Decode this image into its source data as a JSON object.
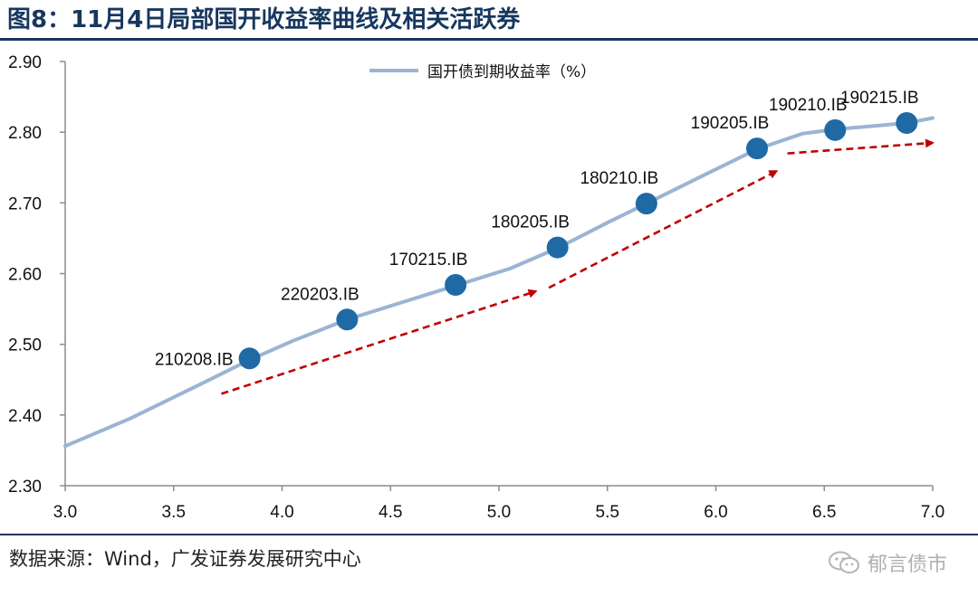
{
  "figure": {
    "title": "图8：11月4日局部国开收益率曲线及相关活跃券",
    "source": "数据来源：Wind，广发证券发展研究中心",
    "watermark": "郁言债市"
  },
  "chart_data": {
    "type": "line",
    "title": "",
    "xlabel": "",
    "ylabel": "",
    "xlim": [
      3.0,
      7.0
    ],
    "ylim": [
      2.3,
      2.9
    ],
    "xticks": [
      "3.0",
      "3.5",
      "4.0",
      "4.5",
      "5.0",
      "5.5",
      "6.0",
      "6.5",
      "7.0"
    ],
    "yticks": [
      "2.30",
      "2.40",
      "2.50",
      "2.60",
      "2.70",
      "2.80",
      "2.90"
    ],
    "grid": false,
    "legend": "top-center",
    "series": [
      {
        "name": "国开债到期收益率（%）",
        "color": "#9bb4d3",
        "x": [
          3.0,
          3.3,
          3.6,
          3.85,
          4.05,
          4.3,
          4.55,
          4.8,
          5.05,
          5.27,
          5.5,
          5.68,
          5.95,
          6.19,
          6.4,
          6.55,
          6.7,
          6.88,
          7.0
        ],
        "y": [
          2.356,
          2.395,
          2.44,
          2.478,
          2.505,
          2.535,
          2.559,
          2.583,
          2.607,
          2.636,
          2.672,
          2.699,
          2.74,
          2.776,
          2.798,
          2.804,
          2.808,
          2.813,
          2.82
        ]
      }
    ],
    "highlight_points": {
      "color": "#1f6aa5",
      "points": [
        {
          "label": "210208.IB",
          "x": 3.85,
          "y": 2.48
        },
        {
          "label": "220203.IB",
          "x": 4.3,
          "y": 2.535
        },
        {
          "label": "170215.IB",
          "x": 4.8,
          "y": 2.584
        },
        {
          "label": "180205.IB",
          "x": 5.27,
          "y": 2.637
        },
        {
          "label": "180210.IB",
          "x": 5.68,
          "y": 2.699
        },
        {
          "label": "190205.IB",
          "x": 6.19,
          "y": 2.777
        },
        {
          "label": "190210.IB",
          "x": 6.55,
          "y": 2.803
        },
        {
          "label": "190215.IB",
          "x": 6.88,
          "y": 2.813
        }
      ]
    },
    "trend_arrows": {
      "color": "#c00000",
      "arrows": [
        {
          "from": [
            3.72,
            2.43
          ],
          "to": [
            5.17,
            2.575
          ]
        },
        {
          "from": [
            5.23,
            2.58
          ],
          "to": [
            6.28,
            2.745
          ]
        },
        {
          "from": [
            6.33,
            2.77
          ],
          "to": [
            7.0,
            2.785
          ]
        }
      ]
    }
  }
}
